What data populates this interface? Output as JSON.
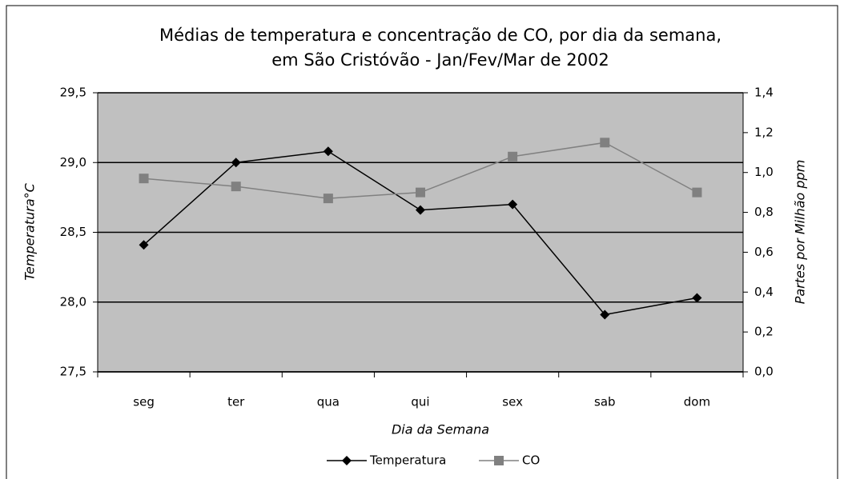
{
  "chart_data": {
    "type": "line",
    "title": [
      "Médias de temperatura e concentração de CO, por dia da semana,",
      "em São Cristóvão - Jan/Fev/Mar de 2002"
    ],
    "x_label": "Dia da Semana",
    "y_label": "Temperatura°C",
    "y2_label": "Partes por Milhão ppm",
    "categories": [
      "seg",
      "ter",
      "qua",
      "qui",
      "sex",
      "sab",
      "dom"
    ],
    "series": [
      {
        "name": "Temperatura",
        "color": "#000000",
        "marker": "diamond",
        "values": [
          28.41,
          29.0,
          29.08,
          28.66,
          28.7,
          27.91,
          28.03
        ]
      },
      {
        "name": "CO",
        "color": "#808080",
        "marker": "square",
        "axis": "y2",
        "values": [
          0.97,
          0.93,
          0.87,
          0.9,
          1.08,
          1.15,
          0.9
        ]
      }
    ],
    "ylim": [
      27.5,
      29.5
    ],
    "yticks": [
      {
        "value": 27.5,
        "label": "27,5"
      },
      {
        "value": 28.0,
        "label": "28,0"
      },
      {
        "value": 28.5,
        "label": "28,5"
      },
      {
        "value": 29.0,
        "label": "29,0"
      },
      {
        "value": 29.5,
        "label": "29,5"
      }
    ],
    "y2lim": [
      0,
      1.4
    ],
    "y2ticks": [
      {
        "value": 0,
        "label": "0,0"
      },
      {
        "value": 0.2,
        "label": "0,2"
      },
      {
        "value": 0.4,
        "label": "0,4"
      },
      {
        "value": 0.6,
        "label": "0,6"
      },
      {
        "value": 0.8,
        "label": "0,8"
      },
      {
        "value": 1.0,
        "label": "1,0"
      },
      {
        "value": 1.2,
        "label": "1,2"
      },
      {
        "value": 1.4,
        "label": "1,4"
      }
    ],
    "grid": true,
    "plot_background": "#c0c0c0",
    "legend": "bottom"
  }
}
